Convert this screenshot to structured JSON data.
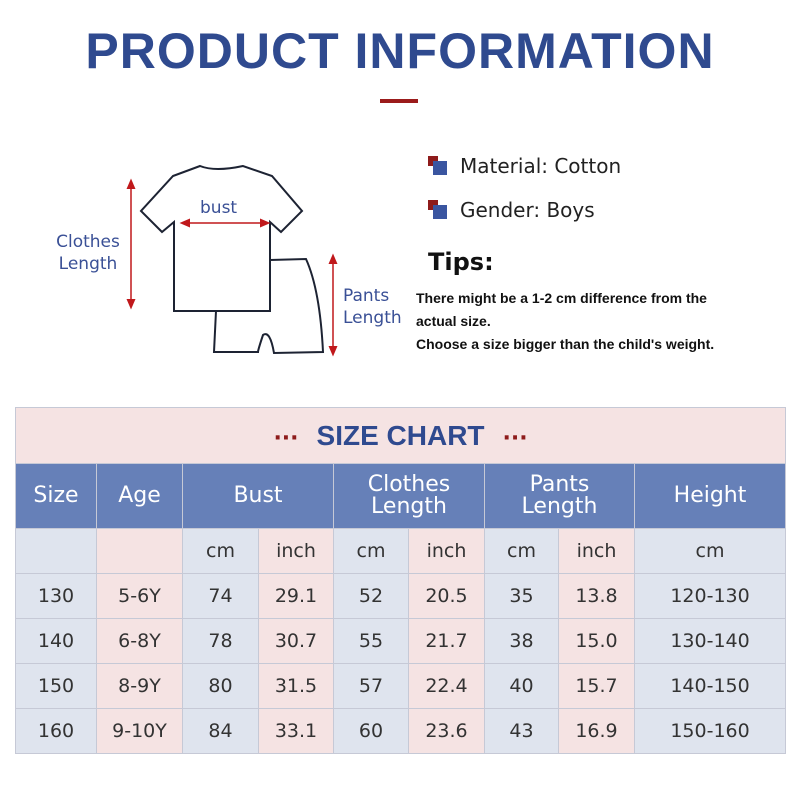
{
  "title": "PRODUCT INFORMATION",
  "diagram": {
    "bust": "bust",
    "clothes_length": [
      "Clothes",
      "Length"
    ],
    "pants_length": [
      "Pants",
      "Length"
    ]
  },
  "specs": {
    "material": "Material: Cotton",
    "gender": "Gender: Boys"
  },
  "tips": {
    "heading": "Tips:",
    "lines": [
      "There might be a 1-2 cm difference from the",
      "actual size.",
      "Choose a size bigger than the child's weight."
    ]
  },
  "colors": {
    "accent_blue": "#2f4a8f",
    "accent_red": "#8e1b1b",
    "header_bg": "#6680b8"
  },
  "size_chart": {
    "title": "SIZE CHART",
    "dots": "···",
    "headers": [
      "Size",
      "Age",
      "Bust",
      [
        "Clothes",
        "Length"
      ],
      [
        "Pants",
        "Length"
      ],
      "Height"
    ],
    "units": [
      "",
      "",
      "cm",
      "inch",
      "cm",
      "inch",
      "cm",
      "inch",
      "cm"
    ],
    "rows": [
      [
        "130",
        "5-6Y",
        "74",
        "29.1",
        "52",
        "20.5",
        "35",
        "13.8",
        "120-130"
      ],
      [
        "140",
        "6-8Y",
        "78",
        "30.7",
        "55",
        "21.7",
        "38",
        "15.0",
        "130-140"
      ],
      [
        "150",
        "8-9Y",
        "80",
        "31.5",
        "57",
        "22.4",
        "40",
        "15.7",
        "140-150"
      ],
      [
        "160",
        "9-10Y",
        "84",
        "33.1",
        "60",
        "23.6",
        "43",
        "16.9",
        "150-160"
      ]
    ]
  }
}
